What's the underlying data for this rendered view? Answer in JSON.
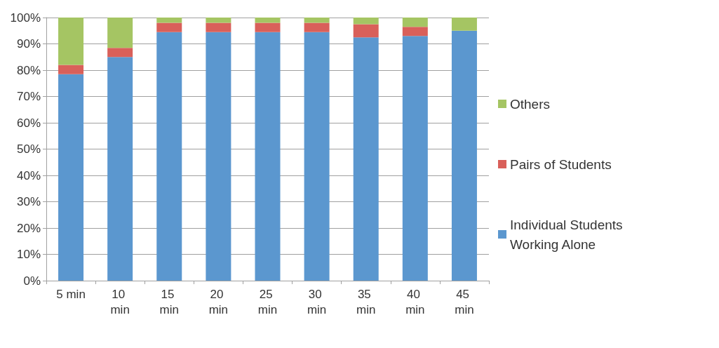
{
  "chart_data": {
    "type": "bar",
    "stacked": true,
    "categories": [
      "5 min",
      "10 min",
      "15 min",
      "20 min",
      "25 min",
      "30 min",
      "35 min",
      "40 min",
      "45 min"
    ],
    "series": [
      {
        "name": "Individual Students Working Alone",
        "color": "#5b97cf",
        "values": [
          78.5,
          85,
          94.5,
          94.5,
          94.5,
          94.5,
          92.5,
          93,
          95
        ]
      },
      {
        "name": "Pairs of Students",
        "color": "#d9605a",
        "values": [
          3.5,
          3.5,
          3.5,
          3.5,
          3.5,
          3.5,
          5,
          3.5,
          0
        ]
      },
      {
        "name": "Others",
        "color": "#a5c563",
        "values": [
          18,
          11.5,
          2,
          2,
          2,
          2,
          2.5,
          3.5,
          5
        ]
      }
    ],
    "ylim": [
      0,
      100
    ],
    "yticks": [
      {
        "value": 0,
        "label": "0%"
      },
      {
        "value": 10,
        "label": "10%"
      },
      {
        "value": 20,
        "label": "20%"
      },
      {
        "value": 30,
        "label": "30%"
      },
      {
        "value": 40,
        "label": "40%"
      },
      {
        "value": 50,
        "label": "50%"
      },
      {
        "value": 60,
        "label": "60%"
      },
      {
        "value": 70,
        "label": "70%"
      },
      {
        "value": 80,
        "label": "80%"
      },
      {
        "value": 90,
        "label": "90%"
      },
      {
        "value": 100,
        "label": "100%"
      }
    ],
    "grid": "y",
    "legend": "right"
  }
}
